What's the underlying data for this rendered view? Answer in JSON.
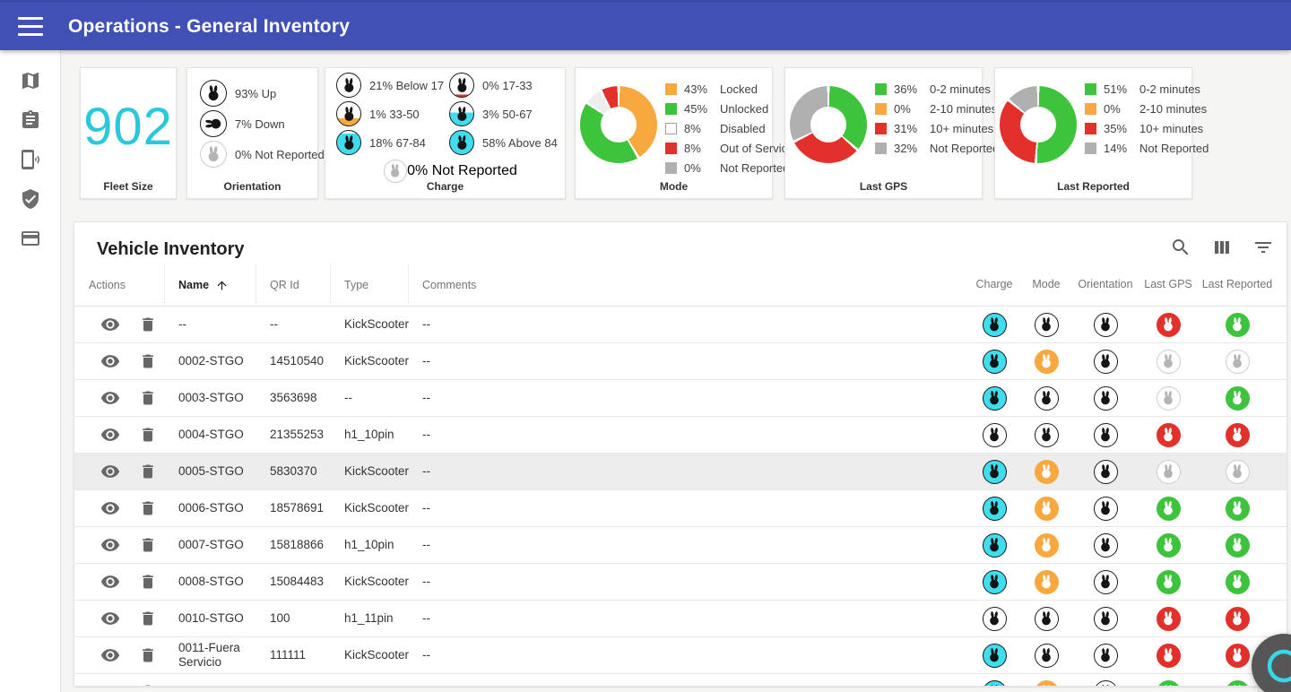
{
  "header": {
    "title": "Operations - General Inventory"
  },
  "sidebar": {
    "items": [
      {
        "icon": "map-icon"
      },
      {
        "icon": "clipboard-icon"
      },
      {
        "icon": "phone-ring-icon"
      },
      {
        "icon": "shield-check-icon"
      },
      {
        "icon": "credit-card-icon"
      }
    ]
  },
  "colors": {
    "header_blue": "#4050b5",
    "fleet_number": "#2bc7db",
    "cyan": "#3FDDED",
    "green": "#3EC43C",
    "red": "#E3302A",
    "orange": "#F7A83F",
    "gray_bunny": "#b4b4b4",
    "gray_swatch": "#B0B0B0",
    "black": "#151515",
    "disabled_wedge": "#ededed"
  },
  "summary_cards": {
    "fleet": {
      "value": "902",
      "label": "Fleet Size"
    },
    "orientation": {
      "label": "Orientation",
      "items": [
        {
          "text": "93% Up",
          "variant": "black",
          "rotate": 0
        },
        {
          "text": "7% Down",
          "variant": "black",
          "rotate": -90
        },
        {
          "text": "0% Not Reported",
          "variant": "gray",
          "rotate": 0
        }
      ]
    },
    "charge": {
      "label": "Charge",
      "grid_items": [
        {
          "text": "21% Below 17",
          "variant": "black",
          "fill_pct": 0,
          "fill_color": null
        },
        {
          "text": "1% 33-50",
          "variant": "black",
          "fill_pct": 30,
          "fill_color": "#F7A83F"
        },
        {
          "text": "18% 67-84",
          "variant": "black",
          "fill_pct": 88,
          "fill_color": "#3FDDED"
        },
        {
          "text": "0% 17-33",
          "variant": "black",
          "fill_pct": 10,
          "fill_color": "#E3302A"
        },
        {
          "text": "3% 50-67",
          "variant": "black",
          "fill_pct": 55,
          "fill_color": "#3FDDED"
        },
        {
          "text": "58% Above 84",
          "variant": "black",
          "fill_pct": 100,
          "fill_color": "#3FDDED"
        }
      ],
      "footer_item": {
        "text": "0% Not Reported",
        "variant": "gray"
      }
    },
    "mode": {
      "label": "Mode",
      "type": "donut",
      "segments": [
        {
          "pct": 43,
          "pct_text": "43%",
          "name": "Locked",
          "color": "#F7A83F"
        },
        {
          "pct": 45,
          "pct_text": "45%",
          "name": "Unlocked",
          "color": "#3EC43C"
        },
        {
          "pct": 8,
          "pct_text": "8%",
          "name": "Disabled",
          "color": "#FFFFFF",
          "wedge_color": "#ededed",
          "swatch_border": "#9e9e9e"
        },
        {
          "pct": 8,
          "pct_text": "8%",
          "name": "Out of Service",
          "color": "#E3302A"
        },
        {
          "pct": 0,
          "pct_text": "0%",
          "name": "Not Reported",
          "color": "#B0B0B0"
        }
      ]
    },
    "last_gps": {
      "label": "Last GPS",
      "type": "donut",
      "segments": [
        {
          "pct": 36,
          "pct_text": "36%",
          "name": "0-2 minutes",
          "color": "#3EC43C"
        },
        {
          "pct": 0,
          "pct_text": "0%",
          "name": "2-10 minutes",
          "color": "#F7A83F"
        },
        {
          "pct": 31,
          "pct_text": "31%",
          "name": "10+ minutes",
          "color": "#E3302A"
        },
        {
          "pct": 32,
          "pct_text": "32%",
          "name": "Not Reported",
          "color": "#B0B0B0"
        }
      ]
    },
    "last_reported": {
      "label": "Last Reported",
      "type": "donut",
      "segments": [
        {
          "pct": 51,
          "pct_text": "51%",
          "name": "0-2 minutes",
          "color": "#3EC43C"
        },
        {
          "pct": 0,
          "pct_text": "0%",
          "name": "2-10 minutes",
          "color": "#F7A83F"
        },
        {
          "pct": 35,
          "pct_text": "35%",
          "name": "10+ minutes",
          "color": "#E3302A"
        },
        {
          "pct": 14,
          "pct_text": "14%",
          "name": "Not Reported",
          "color": "#B0B0B0"
        }
      ]
    }
  },
  "inventory": {
    "title": "Vehicle Inventory",
    "toolbar": [
      {
        "icon": "search-icon"
      },
      {
        "icon": "view-columns-icon"
      },
      {
        "icon": "filter-icon"
      }
    ],
    "columns": [
      "Actions",
      "Name",
      "QR Id",
      "Type",
      "Comments",
      "Charge",
      "Mode",
      "Orientation",
      "Last GPS",
      "Last Reported"
    ],
    "sorted_column": "Name",
    "sort_direction": "asc",
    "rows": [
      {
        "name": "--",
        "qr_id": "--",
        "type": "KickScooter",
        "comments": "--",
        "selected": false,
        "status": {
          "charge": "cyan",
          "mode": "black",
          "orientation": "black",
          "last_gps": "red",
          "last_reported": "green"
        }
      },
      {
        "name": "0002-STGO",
        "qr_id": "14510540",
        "type": "KickScooter",
        "comments": "--",
        "selected": false,
        "status": {
          "charge": "cyan",
          "mode": "orange",
          "orientation": "black",
          "last_gps": "gray",
          "last_reported": "gray"
        }
      },
      {
        "name": "0003-STGO",
        "qr_id": "3563698",
        "type": "--",
        "comments": "--",
        "selected": false,
        "status": {
          "charge": "cyan",
          "mode": "black",
          "orientation": "black",
          "last_gps": "gray",
          "last_reported": "green"
        }
      },
      {
        "name": "0004-STGO",
        "qr_id": "21355253",
        "type": "h1_10pin",
        "comments": "--",
        "selected": false,
        "status": {
          "charge": "black",
          "mode": "black",
          "orientation": "black",
          "last_gps": "red",
          "last_reported": "red"
        }
      },
      {
        "name": "0005-STGO",
        "qr_id": "5830370",
        "type": "KickScooter",
        "comments": "--",
        "selected": true,
        "status": {
          "charge": "cyan",
          "mode": "orange",
          "orientation": "black",
          "last_gps": "gray",
          "last_reported": "gray"
        }
      },
      {
        "name": "0006-STGO",
        "qr_id": "18578691",
        "type": "KickScooter",
        "comments": "--",
        "selected": false,
        "status": {
          "charge": "cyan",
          "mode": "orange",
          "orientation": "black",
          "last_gps": "green",
          "last_reported": "green"
        }
      },
      {
        "name": "0007-STGO",
        "qr_id": "15818866",
        "type": "h1_10pin",
        "comments": "--",
        "selected": false,
        "status": {
          "charge": "cyan",
          "mode": "orange",
          "orientation": "black",
          "last_gps": "green",
          "last_reported": "green"
        }
      },
      {
        "name": "0008-STGO",
        "qr_id": "15084483",
        "type": "KickScooter",
        "comments": "--",
        "selected": false,
        "status": {
          "charge": "cyan",
          "mode": "orange",
          "orientation": "black",
          "last_gps": "green",
          "last_reported": "green"
        }
      },
      {
        "name": "0010-STGO",
        "qr_id": "100",
        "type": "h1_11pin",
        "comments": "--",
        "selected": false,
        "status": {
          "charge": "black",
          "mode": "black",
          "orientation": "black",
          "last_gps": "red",
          "last_reported": "red"
        }
      },
      {
        "name": "0011-Fuera Servicio",
        "qr_id": "111111",
        "type": "KickScooter",
        "comments": "--",
        "selected": false,
        "status": {
          "charge": "cyan",
          "mode": "black",
          "orientation": "black",
          "last_gps": "red",
          "last_reported": "red"
        }
      },
      {
        "name": "",
        "qr_id": "",
        "type": "",
        "comments": "",
        "selected": false,
        "partial": true,
        "status": {
          "charge": "cyan",
          "mode": "orange",
          "orientation": "black",
          "last_gps": "green",
          "last_reported": "green"
        }
      }
    ]
  }
}
